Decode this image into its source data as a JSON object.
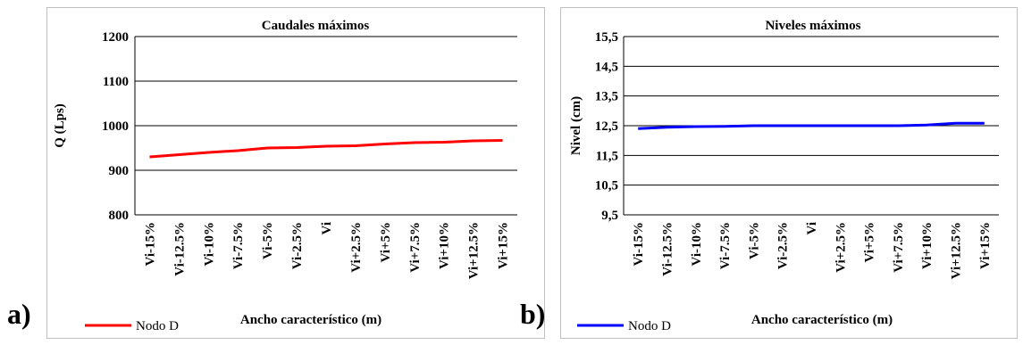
{
  "panel_labels": [
    "a)",
    "b)"
  ],
  "chart_data": [
    {
      "type": "line",
      "title": "Caudales máximos",
      "xlabel": "Ancho característico (m)",
      "ylabel": "Q (Lps)",
      "categories": [
        "Vi-15%",
        "Vi-12.5%",
        "Vi-10%",
        "Vi-7.5%",
        "Vi-5%",
        "Vi-2.5%",
        "Vi",
        "Vi+2.5%",
        "Vi+5%",
        "Vi+7.5%",
        "Vi+10%",
        "Vi+12.5%",
        "Vi+15%"
      ],
      "ylim": [
        800,
        1200
      ],
      "yticks": [
        "800",
        "900",
        "1000",
        "1100",
        "1200"
      ],
      "ytick_values": [
        800,
        900,
        1000,
        1100,
        1200
      ],
      "series": [
        {
          "name": "Nodo D",
          "color": "#ff0000",
          "values": [
            930,
            935,
            940,
            944,
            950,
            951,
            954,
            955,
            959,
            962,
            963,
            966,
            967
          ]
        }
      ],
      "grid": true,
      "legend": "bottom-left"
    },
    {
      "type": "line",
      "title": "Niveles máximos",
      "xlabel": "Ancho característico (m)",
      "ylabel": "Nivel (cm)",
      "categories": [
        "Vi-15%",
        "Vi-12.5%",
        "Vi-10%",
        "Vi-7.5%",
        "Vi-5%",
        "Vi-2.5%",
        "Vi",
        "Vi+2.5%",
        "Vi+5%",
        "Vi+7.5%",
        "Vi+10%",
        "Vi+12.5%",
        "Vi+15%"
      ],
      "ylim": [
        9.5,
        15.5
      ],
      "yticks": [
        "9,5",
        "10,5",
        "11,5",
        "12,5",
        "13,5",
        "14,5",
        "15,5"
      ],
      "ytick_values": [
        9.5,
        10.5,
        11.5,
        12.5,
        13.5,
        14.5,
        15.5
      ],
      "series": [
        {
          "name": "Nodo D",
          "color": "#0000ff",
          "values": [
            12.4,
            12.45,
            12.47,
            12.48,
            12.5,
            12.5,
            12.5,
            12.5,
            12.5,
            12.5,
            12.52,
            12.58,
            12.58
          ]
        }
      ],
      "grid": true,
      "legend": "bottom-left"
    }
  ]
}
